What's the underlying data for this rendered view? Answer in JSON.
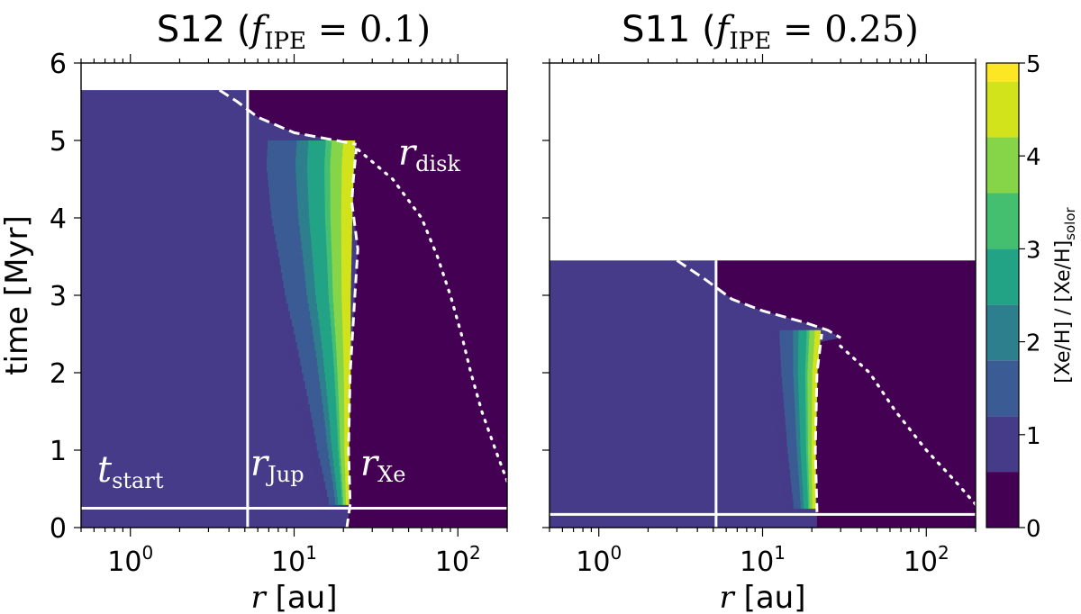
{
  "chart_data": {
    "type": "heatmap",
    "colorbar": {
      "label": "[Xe/H] / [Xe/H]",
      "label_sub": "solor",
      "range": [
        0,
        5
      ],
      "ticks": [
        "0",
        "1",
        "2",
        "3",
        "4",
        "5"
      ],
      "levels": [
        0,
        0.6,
        1.2,
        1.8,
        2.4,
        3.0,
        3.6,
        4.2,
        4.8
      ],
      "colors": [
        "#440154",
        "#463b88",
        "#3a5b93",
        "#2e7f8e",
        "#22a385",
        "#44bf70",
        "#86d549",
        "#d2e21b",
        "#fde725"
      ]
    },
    "axes": {
      "ylabel": "time [Myr]",
      "xlabel_var": "r",
      "xlabel_unit": "[au]",
      "x_scale": "log",
      "xlim": [
        0.5,
        200
      ],
      "ylim": [
        0,
        6
      ],
      "yticks": [
        "0",
        "1",
        "2",
        "3",
        "4",
        "5",
        "6"
      ],
      "xticks": [
        {
          "value": 1,
          "base": "10",
          "exp": "0"
        },
        {
          "value": 10,
          "base": "10",
          "exp": "1"
        },
        {
          "value": 100,
          "base": "10",
          "exp": "2"
        }
      ]
    },
    "panels": [
      {
        "id": "S12",
        "title_name": "S12 (",
        "title_f": "f",
        "title_sub": "IPE",
        "title_value": " = 0.1)",
        "t_end": 5.65,
        "background_value": 1.0,
        "outer_value": 0.0,
        "r_jup": 5.2,
        "t_start": 0.25,
        "enriched_region": {
          "t": [
            0.3,
            1.0,
            2.0,
            3.0,
            4.0,
            4.7,
            5.0
          ],
          "r_inner": [
            15.0,
            12.0,
            9.0,
            6.5,
            5.0,
            4.5,
            4.6
          ],
          "r_outer": [
            21.5,
            21.5,
            22.0,
            22.0,
            22.5,
            23.0,
            23.5
          ],
          "peak_value": 5.0
        },
        "r_xe": {
          "t": [
            0.0,
            0.3,
            1.0,
            2.0,
            3.0,
            3.6,
            4.2,
            4.5,
            4.9
          ],
          "r": [
            21.0,
            22.0,
            21.5,
            22.0,
            23.5,
            24.5,
            22.5,
            23.0,
            24.0
          ]
        },
        "r_disk": {
          "t": [
            0.6,
            1.0,
            1.5,
            2.0,
            2.5,
            3.0,
            3.5,
            4.0,
            4.5,
            4.9
          ],
          "r": [
            200,
            170,
            140,
            120,
            105,
            90,
            75,
            60,
            40,
            24
          ]
        },
        "disk_edge": {
          "t": [
            5.65,
            5.5,
            5.3,
            5.1,
            5.0,
            4.95
          ],
          "r": [
            3.5,
            4.5,
            6.0,
            10.0,
            18.0,
            24.0
          ]
        },
        "labels": {
          "tstart_main": "t",
          "tstart_sub": "start",
          "rjup_main": "r",
          "rjup_sub": "Jup",
          "rxe_main": "r",
          "rxe_sub": "Xe",
          "rdisk_main": "r",
          "rdisk_sub": "disk"
        }
      },
      {
        "id": "S11",
        "title_name": "S11 (",
        "title_f": "f",
        "title_sub": "IPE",
        "title_value": " = 0.25)",
        "t_end": 3.45,
        "background_value": 1.0,
        "outer_value": 0.0,
        "r_jup": 5.2,
        "t_start": 0.17,
        "enriched_region": {
          "t": [
            0.25,
            1.0,
            2.0,
            2.5
          ],
          "r_inner": [
            14.0,
            12.5,
            11.0,
            10.5
          ],
          "r_outer": [
            21.0,
            21.0,
            21.5,
            22.5
          ],
          "peak_value": 5.0
        },
        "r_xe": {
          "t": [
            0.2,
            1.0,
            2.0,
            2.5
          ],
          "r": [
            21.5,
            21.0,
            21.5,
            23.0
          ]
        },
        "r_disk": {
          "t": [
            0.3,
            0.6,
            1.0,
            1.5,
            2.0,
            2.4
          ],
          "r": [
            200,
            150,
            100,
            65,
            45,
            28
          ]
        },
        "disk_edge": {
          "t": [
            3.45,
            3.2,
            2.95,
            2.8,
            2.65,
            2.55,
            2.45
          ],
          "r": [
            3.0,
            4.5,
            6.5,
            10.0,
            18.0,
            25.0,
            30.0
          ]
        },
        "labels": {}
      }
    ]
  }
}
